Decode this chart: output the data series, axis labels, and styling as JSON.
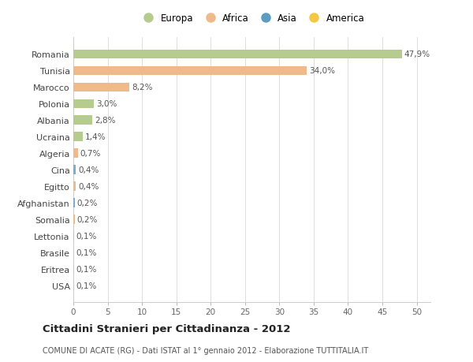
{
  "categories": [
    "Romania",
    "Tunisia",
    "Marocco",
    "Polonia",
    "Albania",
    "Ucraina",
    "Algeria",
    "Cina",
    "Egitto",
    "Afghanistan",
    "Somalia",
    "Lettonia",
    "Brasile",
    "Eritrea",
    "USA"
  ],
  "values": [
    47.9,
    34.0,
    8.2,
    3.0,
    2.8,
    1.4,
    0.7,
    0.4,
    0.4,
    0.2,
    0.2,
    0.1,
    0.1,
    0.1,
    0.1
  ],
  "labels": [
    "47,9%",
    "34,0%",
    "8,2%",
    "3,0%",
    "2,8%",
    "1,4%",
    "0,7%",
    "0,4%",
    "0,4%",
    "0,2%",
    "0,2%",
    "0,1%",
    "0,1%",
    "0,1%",
    "0,1%"
  ],
  "colors": [
    "#b5cc8e",
    "#f0b989",
    "#f0b989",
    "#b5cc8e",
    "#b5cc8e",
    "#b5cc8e",
    "#f0b989",
    "#7aadcf",
    "#f0b989",
    "#7aadcf",
    "#f0b989",
    "#b5cc8e",
    "#f5c842",
    "#f0b989",
    "#f5c842"
  ],
  "legend_labels": [
    "Europa",
    "Africa",
    "Asia",
    "America"
  ],
  "legend_colors": [
    "#b5cc8e",
    "#f0b989",
    "#5b9cc0",
    "#f5c842"
  ],
  "title": "Cittadini Stranieri per Cittadinanza - 2012",
  "subtitle": "COMUNE DI ACATE (RG) - Dati ISTAT al 1° gennaio 2012 - Elaborazione TUTTITALIA.IT",
  "xlim": [
    0,
    52
  ],
  "xticks": [
    0,
    5,
    10,
    15,
    20,
    25,
    30,
    35,
    40,
    45,
    50
  ],
  "bg_color": "#ffffff",
  "grid_color": "#d8d8d8",
  "bar_height": 0.55
}
